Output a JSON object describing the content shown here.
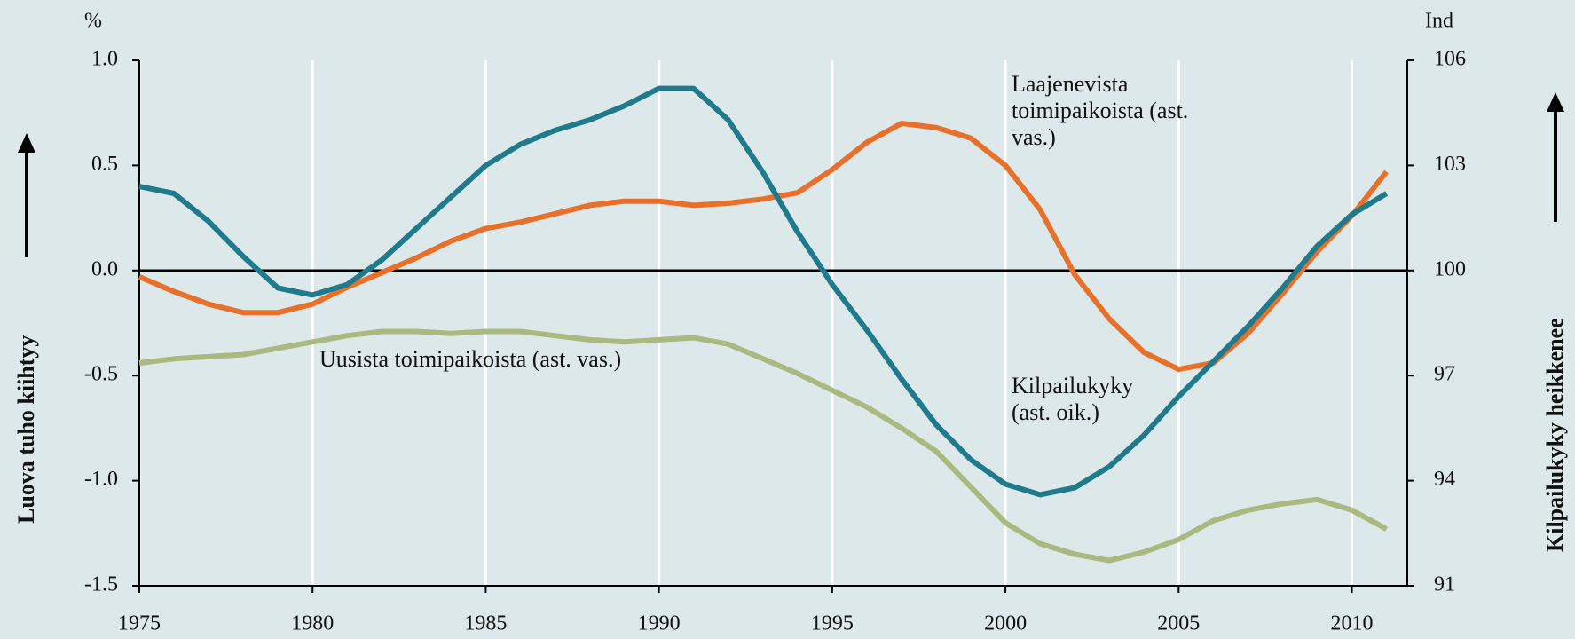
{
  "chart_data": {
    "type": "line",
    "ylabel": "Luova tuho kiihtyy",
    "y2label": "Kilpailukyky heikkenee",
    "yunit": "%",
    "y2unit": "Ind",
    "x": [
      1975,
      1976,
      1977,
      1978,
      1979,
      1980,
      1981,
      1982,
      1983,
      1984,
      1985,
      1986,
      1987,
      1988,
      1989,
      1990,
      1991,
      1992,
      1993,
      1994,
      1995,
      1996,
      1997,
      1998,
      1999,
      2000,
      2001,
      2002,
      2003,
      2004,
      2005,
      2006,
      2007,
      2008,
      2009,
      2010,
      2011
    ],
    "xlim": [
      1975,
      2011.6
    ],
    "xticks": [
      1975,
      1980,
      1985,
      1990,
      1995,
      2000,
      2005,
      2010
    ],
    "ylim": [
      -1.5,
      1.0
    ],
    "yticks": [
      -1.5,
      {
        "value": -1,
        "label": "-1.0"
      },
      -0.5,
      {
        "value": 0,
        "label": "0.0"
      },
      0.5,
      {
        "value": 1,
        "label": "1.0"
      }
    ],
    "y2lim": [
      91,
      106
    ],
    "y2ticks": [
      91,
      94,
      97,
      100,
      103,
      106
    ],
    "zero_line": true,
    "grid": "x",
    "series": [
      {
        "name": "Laajenevista toimipaikoista (ast. vas.)",
        "color": "#e8702a",
        "values": [
          -0.03,
          -0.1,
          -0.16,
          -0.2,
          -0.2,
          -0.16,
          -0.08,
          -0.01,
          0.06,
          0.14,
          0.2,
          0.23,
          0.27,
          0.31,
          0.33,
          0.33,
          0.31,
          0.32,
          0.34,
          0.37,
          0.48,
          0.61,
          0.7,
          0.68,
          0.63,
          0.5,
          0.29,
          -0.02,
          -0.23,
          -0.39,
          -0.47,
          -0.44,
          -0.3,
          -0.11,
          0.09,
          0.26,
          0.47
        ]
      },
      {
        "name": "Uusista toimipaikoista (ast. vas.)",
        "color": "#a9b97f",
        "values": [
          -0.44,
          -0.42,
          -0.41,
          -0.4,
          -0.37,
          -0.34,
          -0.31,
          -0.29,
          -0.29,
          -0.3,
          -0.29,
          -0.29,
          -0.31,
          -0.33,
          -0.34,
          -0.33,
          -0.32,
          -0.35,
          -0.42,
          -0.49,
          -0.57,
          -0.65,
          -0.75,
          -0.86,
          -1.03,
          -1.2,
          -1.3,
          -1.35,
          -1.38,
          -1.34,
          -1.28,
          -1.19,
          -1.14,
          -1.11,
          -1.09,
          -1.14,
          -1.23
        ]
      },
      {
        "name": "Kilpailukyky (ast. oik.)",
        "color": "#1f7a8c",
        "axis": "y2",
        "values": [
          102.4,
          102.2,
          101.4,
          100.4,
          99.5,
          99.3,
          99.6,
          100.3,
          101.2,
          102.1,
          103.0,
          103.6,
          104.0,
          104.3,
          104.7,
          105.2,
          105.2,
          104.3,
          102.8,
          101.1,
          99.6,
          98.3,
          96.9,
          95.6,
          94.6,
          93.9,
          93.6,
          93.8,
          94.4,
          95.3,
          96.4,
          97.4,
          98.4,
          99.5,
          100.7,
          101.6,
          102.2
        ]
      }
    ]
  }
}
